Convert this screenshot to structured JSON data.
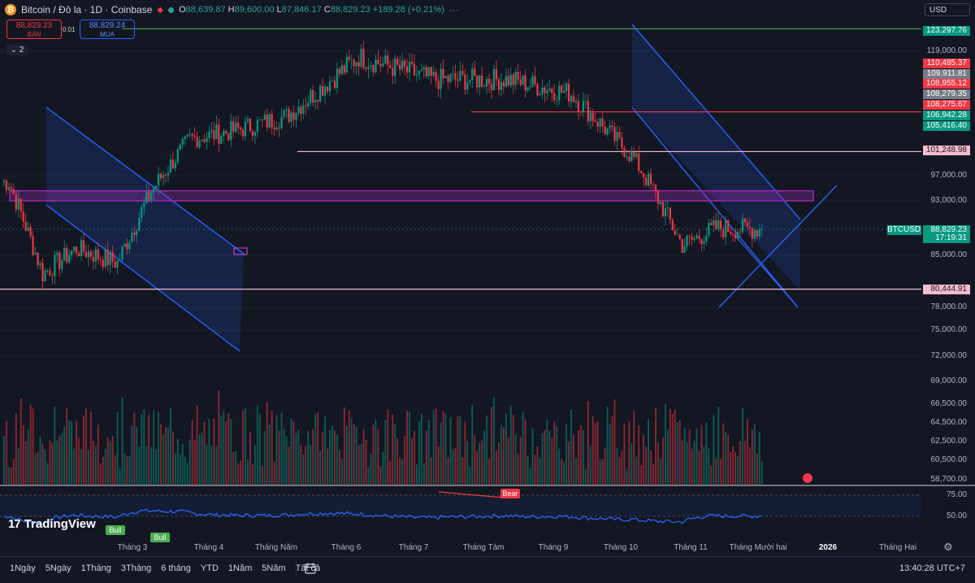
{
  "header": {
    "title": "Bitcoin / Đô la · 1D · Coinbase",
    "open_label": "O",
    "open": "88,639.87",
    "high_label": "H",
    "high": "89,600.00",
    "low_label": "L",
    "low": "87,846.17",
    "close_label": "C",
    "close": "88,829.23",
    "change": "+189.28 (+0.21%)",
    "coin_symbol": "₿"
  },
  "trade": {
    "sell_price": "88,829.23",
    "sell_label": "BÁN",
    "buy_price": "88,829.24",
    "buy_label": "MUA",
    "spread": "0.01"
  },
  "indicator_count": "2",
  "currency": "USD",
  "price_axis": {
    "ticks": [
      "119,000.00",
      "97,000.00",
      "93,000.00",
      "85,000.00",
      "78,000.00",
      "75,000.00",
      "72,000.00",
      "69,000.00",
      "66,500.00",
      "64,500.00",
      "62,500.00",
      "60,500.00",
      "58,700.00"
    ],
    "tags": [
      {
        "text": "123,297.76",
        "color": "#089981",
        "label_bg": true
      },
      {
        "text": "110,485.37",
        "color": "#f23645"
      },
      {
        "text": "109,911.81",
        "color": "#787b86"
      },
      {
        "text": "108,955.12",
        "color": "#f23645"
      },
      {
        "text": "108,279.35",
        "color": "#787b86"
      },
      {
        "text": "108,275.67",
        "color": "#f23645"
      },
      {
        "text": "106,942.28",
        "color": "#089981"
      },
      {
        "text": "105,416.40",
        "color": "#089981"
      },
      {
        "text": "101,248.98",
        "color": "#f8bbd0"
      },
      {
        "text": "88,829.23",
        "color": "#089981"
      },
      {
        "text": "17:19:31",
        "color": "#089981"
      },
      {
        "text": "80,444.91",
        "color": "#f8bbd0"
      }
    ],
    "symbol_label": "BTCUSD"
  },
  "rsi_axis": {
    "ticks": [
      "75.00",
      "50.00"
    ]
  },
  "x_axis": {
    "labels": [
      "Tháng 3",
      "Tháng 4",
      "Tháng Năm",
      "Tháng 6",
      "Tháng 7",
      "Tháng Tám",
      "Tháng 9",
      "Tháng 10",
      "Tháng 11",
      "Tháng Mười hai",
      "2026",
      "Tháng Hai"
    ]
  },
  "bottom": {
    "ranges": [
      "1Ngày",
      "5Ngày",
      "1Tháng",
      "3Tháng",
      "6 tháng",
      "YTD",
      "1Năm",
      "5Năm",
      "Tất cả"
    ],
    "clock": "13:40:28 UTC+7"
  },
  "logo_text": "TradingView",
  "signals": {
    "bull1": "Bull",
    "bull2": "Bull",
    "bear": "Bear"
  },
  "colors": {
    "up": "#089981",
    "down": "#f23645",
    "rsi": "#2962ff",
    "channel": "#2962ff",
    "zone": "#9c27b0",
    "hline_green": "#4caf50",
    "hline_red": "#f23645",
    "hline_pink": "#f8bbd0"
  },
  "chart_data": {
    "type": "candlestick",
    "symbol": "BTCUSD",
    "interval": "1D",
    "ylim": [
      72000,
      126000
    ],
    "last_close": 88829.23,
    "x_range": [
      "2025-02-12",
      "2026-02-20"
    ],
    "ohlc_monthly_approx": [
      {
        "date": "2025-02-15",
        "o": 97500,
        "h": 98500,
        "l": 95000,
        "c": 96000
      },
      {
        "date": "2025-03-01",
        "o": 94000,
        "h": 95000,
        "l": 78000,
        "c": 82500
      },
      {
        "date": "2025-03-15",
        "o": 83000,
        "h": 88000,
        "l": 80000,
        "c": 86000
      },
      {
        "date": "2025-04-01",
        "o": 83000,
        "h": 88000,
        "l": 74500,
        "c": 84000
      },
      {
        "date": "2025-04-15",
        "o": 84000,
        "h": 95000,
        "l": 83000,
        "c": 94500
      },
      {
        "date": "2025-05-01",
        "o": 94500,
        "h": 104000,
        "l": 93500,
        "c": 103500
      },
      {
        "date": "2025-05-20",
        "o": 104000,
        "h": 111900,
        "l": 101500,
        "c": 105000
      },
      {
        "date": "2025-06-10",
        "o": 105000,
        "h": 110500,
        "l": 98500,
        "c": 107500
      },
      {
        "date": "2025-07-10",
        "o": 108000,
        "h": 123200,
        "l": 107000,
        "c": 118000
      },
      {
        "date": "2025-08-10",
        "o": 118000,
        "h": 124400,
        "l": 112000,
        "c": 114000
      },
      {
        "date": "2025-09-10",
        "o": 112000,
        "h": 117500,
        "l": 107500,
        "c": 114000
      },
      {
        "date": "2025-10-06",
        "o": 114000,
        "h": 126200,
        "l": 109000,
        "c": 111500
      },
      {
        "date": "2025-11-01",
        "o": 110000,
        "h": 111500,
        "l": 98000,
        "c": 100000
      },
      {
        "date": "2025-11-21",
        "o": 95000,
        "h": 96000,
        "l": 80600,
        "c": 86500
      },
      {
        "date": "2025-12-05",
        "o": 87000,
        "h": 94500,
        "l": 84000,
        "c": 89000
      },
      {
        "date": "2025-12-20",
        "o": 88600,
        "h": 89600,
        "l": 84500,
        "c": 88829.23
      }
    ],
    "horizontal_levels": [
      123297.76,
      108275.67,
      101248.98,
      80444.91
    ],
    "zone": [
      93000,
      94600
    ],
    "rsi": {
      "levels": [
        75,
        50
      ],
      "last": 50
    }
  }
}
